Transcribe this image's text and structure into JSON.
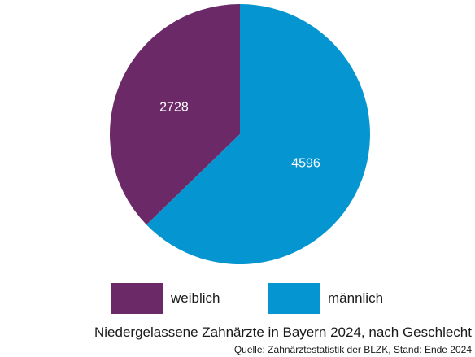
{
  "chart_data": {
    "type": "pie",
    "title": "Niedergelassene Zahnärzte in Bayern 2024, nach Geschlecht",
    "source": "Quelle: Zahnärztestatistik der BLZK, Stand: Ende 2024",
    "slices": [
      {
        "label": "weiblich",
        "value": 2728,
        "display": "2728",
        "color": "#6b2a67"
      },
      {
        "label": "männlich",
        "value": 4596,
        "display": "4596",
        "color": "#0596d1"
      }
    ],
    "legend_position": "bottom",
    "data_label_color": "#ffffff"
  }
}
